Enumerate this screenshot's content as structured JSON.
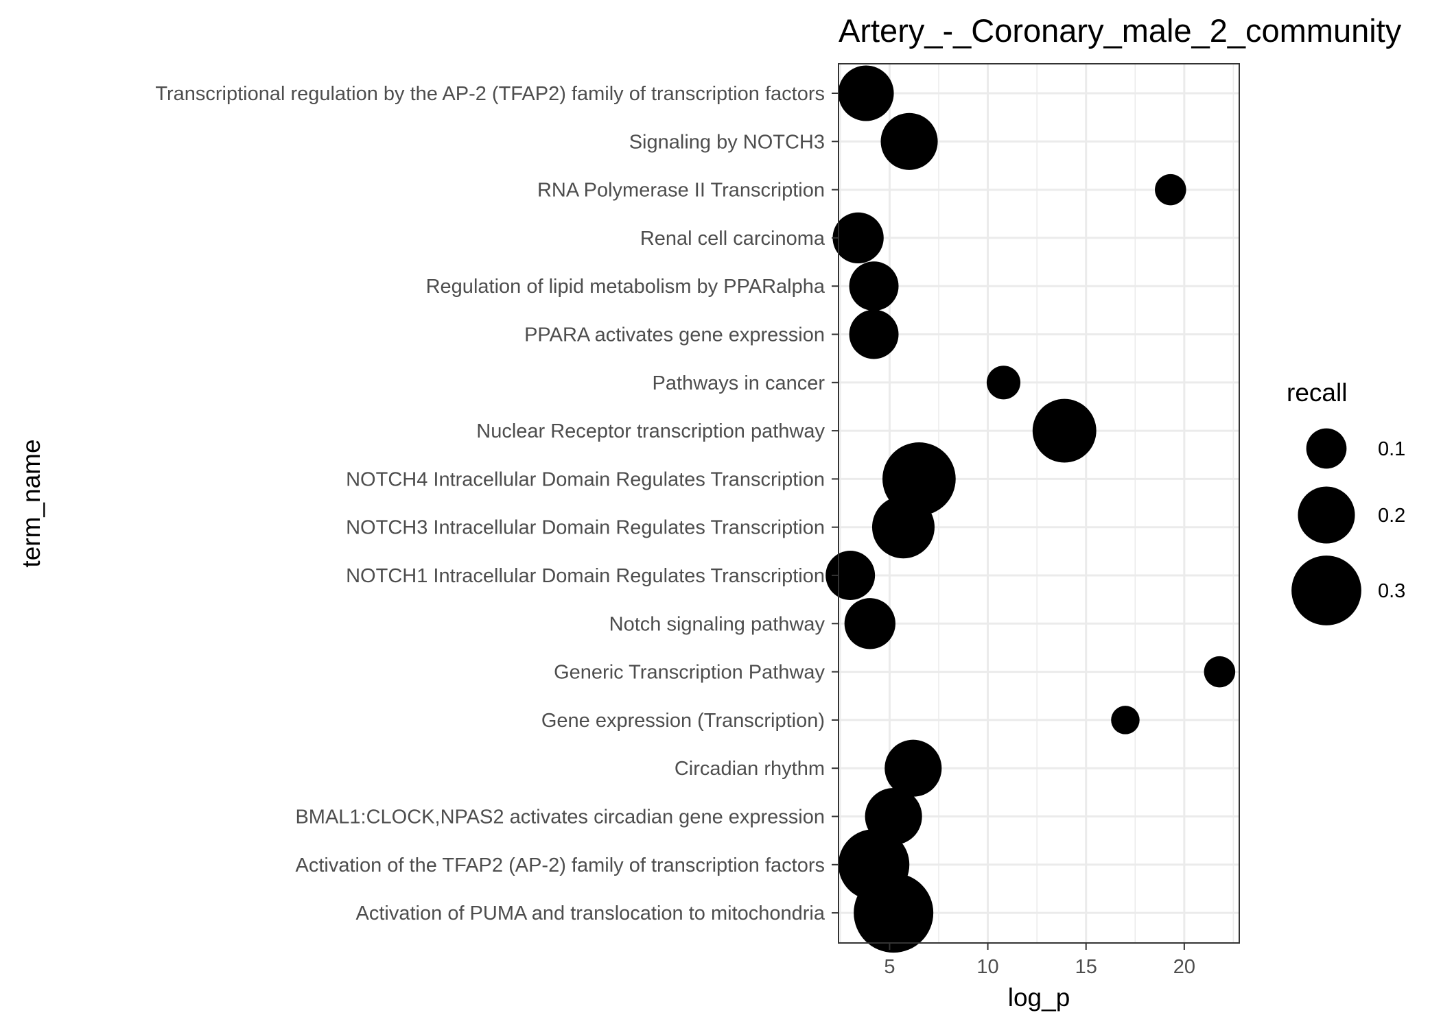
{
  "chart_data": {
    "type": "scatter",
    "title": "Artery_-_Coronary_male_2_community",
    "xlabel": "log_p",
    "ylabel": "term_name",
    "xlim": [
      2.4,
      22.8
    ],
    "xticks": [
      5,
      10,
      15,
      20
    ],
    "grid": true,
    "legend_position": "right",
    "size_legend": {
      "title": "recall",
      "entries": [
        {
          "label": "0.1",
          "value": 0.1
        },
        {
          "label": "0.2",
          "value": 0.2
        },
        {
          "label": "0.3",
          "value": 0.3
        }
      ]
    },
    "categories": [
      "Transcriptional regulation by the AP-2 (TFAP2) family of transcription factors",
      "Signaling by NOTCH3",
      "RNA Polymerase II Transcription",
      "Renal cell carcinoma",
      "Regulation of lipid metabolism by PPARalpha",
      "PPARA activates gene expression",
      "Pathways in cancer",
      "Nuclear Receptor transcription pathway",
      "NOTCH4 Intracellular Domain Regulates Transcription",
      "NOTCH3 Intracellular Domain Regulates Transcription",
      "NOTCH1 Intracellular Domain Regulates Transcription",
      "Notch signaling pathway",
      "Generic Transcription Pathway",
      "Gene expression (Transcription)",
      "Circadian rhythm",
      "BMAL1:CLOCK,NPAS2 activates circadian gene expression",
      "Activation of the TFAP2 (AP-2) family of transcription factors",
      "Activation of PUMA and translocation to mitochondria"
    ],
    "points": [
      {
        "term": "Transcriptional regulation by the AP-2 (TFAP2) family of transcription factors",
        "log_p": 3.8,
        "recall": 0.19
      },
      {
        "term": "Signaling by NOTCH3",
        "log_p": 6.0,
        "recall": 0.2
      },
      {
        "term": "RNA Polymerase II Transcription",
        "log_p": 19.3,
        "recall": 0.06
      },
      {
        "term": "Renal cell carcinoma",
        "log_p": 3.4,
        "recall": 0.16
      },
      {
        "term": "Regulation of lipid metabolism by PPARalpha",
        "log_p": 4.2,
        "recall": 0.15
      },
      {
        "term": "PPARA activates gene expression",
        "log_p": 4.2,
        "recall": 0.15
      },
      {
        "term": "Pathways in cancer",
        "log_p": 10.8,
        "recall": 0.07
      },
      {
        "term": "Nuclear Receptor transcription pathway",
        "log_p": 13.9,
        "recall": 0.25
      },
      {
        "term": "NOTCH4 Intracellular Domain Regulates Transcription",
        "log_p": 6.5,
        "recall": 0.33
      },
      {
        "term": "NOTCH3 Intracellular Domain Regulates Transcription",
        "log_p": 5.7,
        "recall": 0.24
      },
      {
        "term": "NOTCH1 Intracellular Domain Regulates Transcription",
        "log_p": 3.0,
        "recall": 0.15
      },
      {
        "term": "Notch signaling pathway",
        "log_p": 4.0,
        "recall": 0.16
      },
      {
        "term": "Generic Transcription Pathway",
        "log_p": 21.8,
        "recall": 0.06
      },
      {
        "term": "Gene expression (Transcription)",
        "log_p": 17.0,
        "recall": 0.05
      },
      {
        "term": "Circadian rhythm",
        "log_p": 6.2,
        "recall": 0.2
      },
      {
        "term": "BMAL1:CLOCK,NPAS2 activates circadian gene expression",
        "log_p": 5.2,
        "recall": 0.2
      },
      {
        "term": "Activation of the TFAP2 (AP-2) family of transcription factors",
        "log_p": 4.2,
        "recall": 0.31
      },
      {
        "term": "Activation of PUMA and translocation to mitochondria",
        "log_p": 5.2,
        "recall": 0.39
      }
    ]
  }
}
